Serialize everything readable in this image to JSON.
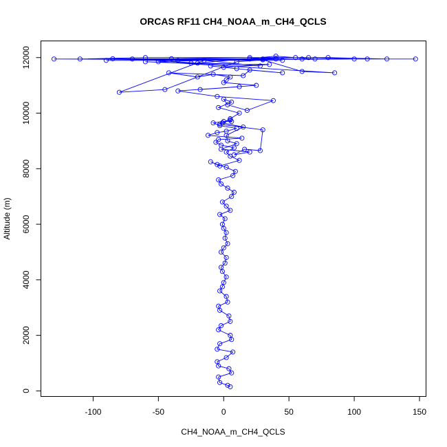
{
  "chart_data": {
    "type": "scatter",
    "title": "ORCAS RF11 CH4_NOAA_m_CH4_QCLS",
    "xlabel": "CH4_NOAA_m_CH4_QCLS",
    "ylabel": "Altitude (m)",
    "xlim": [
      -140,
      155
    ],
    "ylim": [
      -200,
      12600
    ],
    "x_ticks": [
      -100,
      -50,
      0,
      50,
      100,
      150
    ],
    "y_ticks": [
      0,
      2000,
      4000,
      6000,
      8000,
      10000,
      12000
    ],
    "x_tick_labels": [
      "-100",
      "-50",
      "0",
      "50",
      "100",
      "150"
    ],
    "y_tick_labels": [
      "0",
      "2000",
      "4000",
      "6000",
      "8000",
      "10000",
      "12000"
    ],
    "grid": false,
    "legend": "none",
    "markers": "open-circle",
    "lines_connect_points": true,
    "series": [
      {
        "color": "#0000ff",
        "x": [
          5,
          3,
          -3,
          -4,
          6,
          4,
          -4,
          -5,
          2,
          7,
          -5,
          -3,
          6,
          5,
          -4,
          -2,
          5,
          4,
          -3,
          -4,
          3,
          2,
          -3,
          -1,
          0,
          2,
          -1,
          -2,
          1,
          2,
          -2,
          0,
          3,
          1,
          2,
          0,
          -1,
          1,
          -3,
          5,
          2,
          -1,
          6,
          8,
          3,
          -2,
          -4,
          7,
          9,
          2,
          -5,
          -10,
          -3,
          12,
          5,
          2,
          8,
          -2,
          -6,
          -4,
          14,
          -12,
          -5,
          2,
          10,
          -3,
          -8,
          0,
          6,
          5,
          -1,
          15,
          2,
          3,
          10,
          -2,
          20,
          8,
          16,
          28,
          30,
          -3,
          5,
          12,
          -4,
          6,
          0,
          3,
          18,
          38,
          -5,
          -35,
          12,
          -18,
          25,
          0,
          2,
          5,
          -8,
          -20,
          -42,
          15,
          20,
          45,
          10,
          -10,
          0,
          35,
          -25,
          -60,
          28,
          -15,
          -80,
          -45,
          10,
          40,
          -35,
          55,
          20,
          -50,
          85,
          60,
          30,
          -70,
          -20,
          40,
          70,
          110,
          -90,
          45,
          -130,
          147,
          -110,
          -60,
          80,
          125,
          100,
          65,
          20,
          -40,
          -85,
          60,
          30
        ],
        "y": [
          150,
          200,
          300,
          500,
          650,
          800,
          900,
          1050,
          1200,
          1400,
          1500,
          1700,
          1850,
          2000,
          2200,
          2350,
          2500,
          2700,
          2900,
          3050,
          3200,
          3400,
          3600,
          3750,
          3900,
          4100,
          4300,
          4450,
          4600,
          4800,
          5000,
          5150,
          5300,
          5500,
          5700,
          5850,
          6000,
          6200,
          6350,
          6500,
          6650,
          6800,
          7000,
          7150,
          7300,
          7450,
          7600,
          7750,
          7900,
          8050,
          8150,
          8250,
          8100,
          8300,
          8450,
          8600,
          8750,
          8850,
          8950,
          9050,
          9100,
          9200,
          9300,
          9350,
          9450,
          9550,
          9650,
          9700,
          9700,
          9750,
          9650,
          9500,
          9200,
          9000,
          8900,
          8700,
          8600,
          8500,
          8700,
          8650,
          9400,
          9600,
          9800,
          10000,
          10200,
          10400,
          10500,
          10300,
          10100,
          10450,
          10600,
          10800,
          10950,
          10850,
          11000,
          11100,
          11200,
          11300,
          11400,
          11300,
          11450,
          11350,
          11550,
          11450,
          11600,
          11700,
          11650,
          11750,
          11800,
          11850,
          11700,
          11900,
          10750,
          10850,
          11850,
          11950,
          11900,
          12000,
          11950,
          11850,
          11450,
          11500,
          11920,
          11950,
          11800,
          12050,
          11950,
          11950,
          11900,
          11900,
          11950,
          11950,
          11950,
          12000,
          12000,
          11950,
          11950,
          12000,
          12000,
          11960,
          11960,
          11950,
          11950
        ]
      }
    ]
  }
}
